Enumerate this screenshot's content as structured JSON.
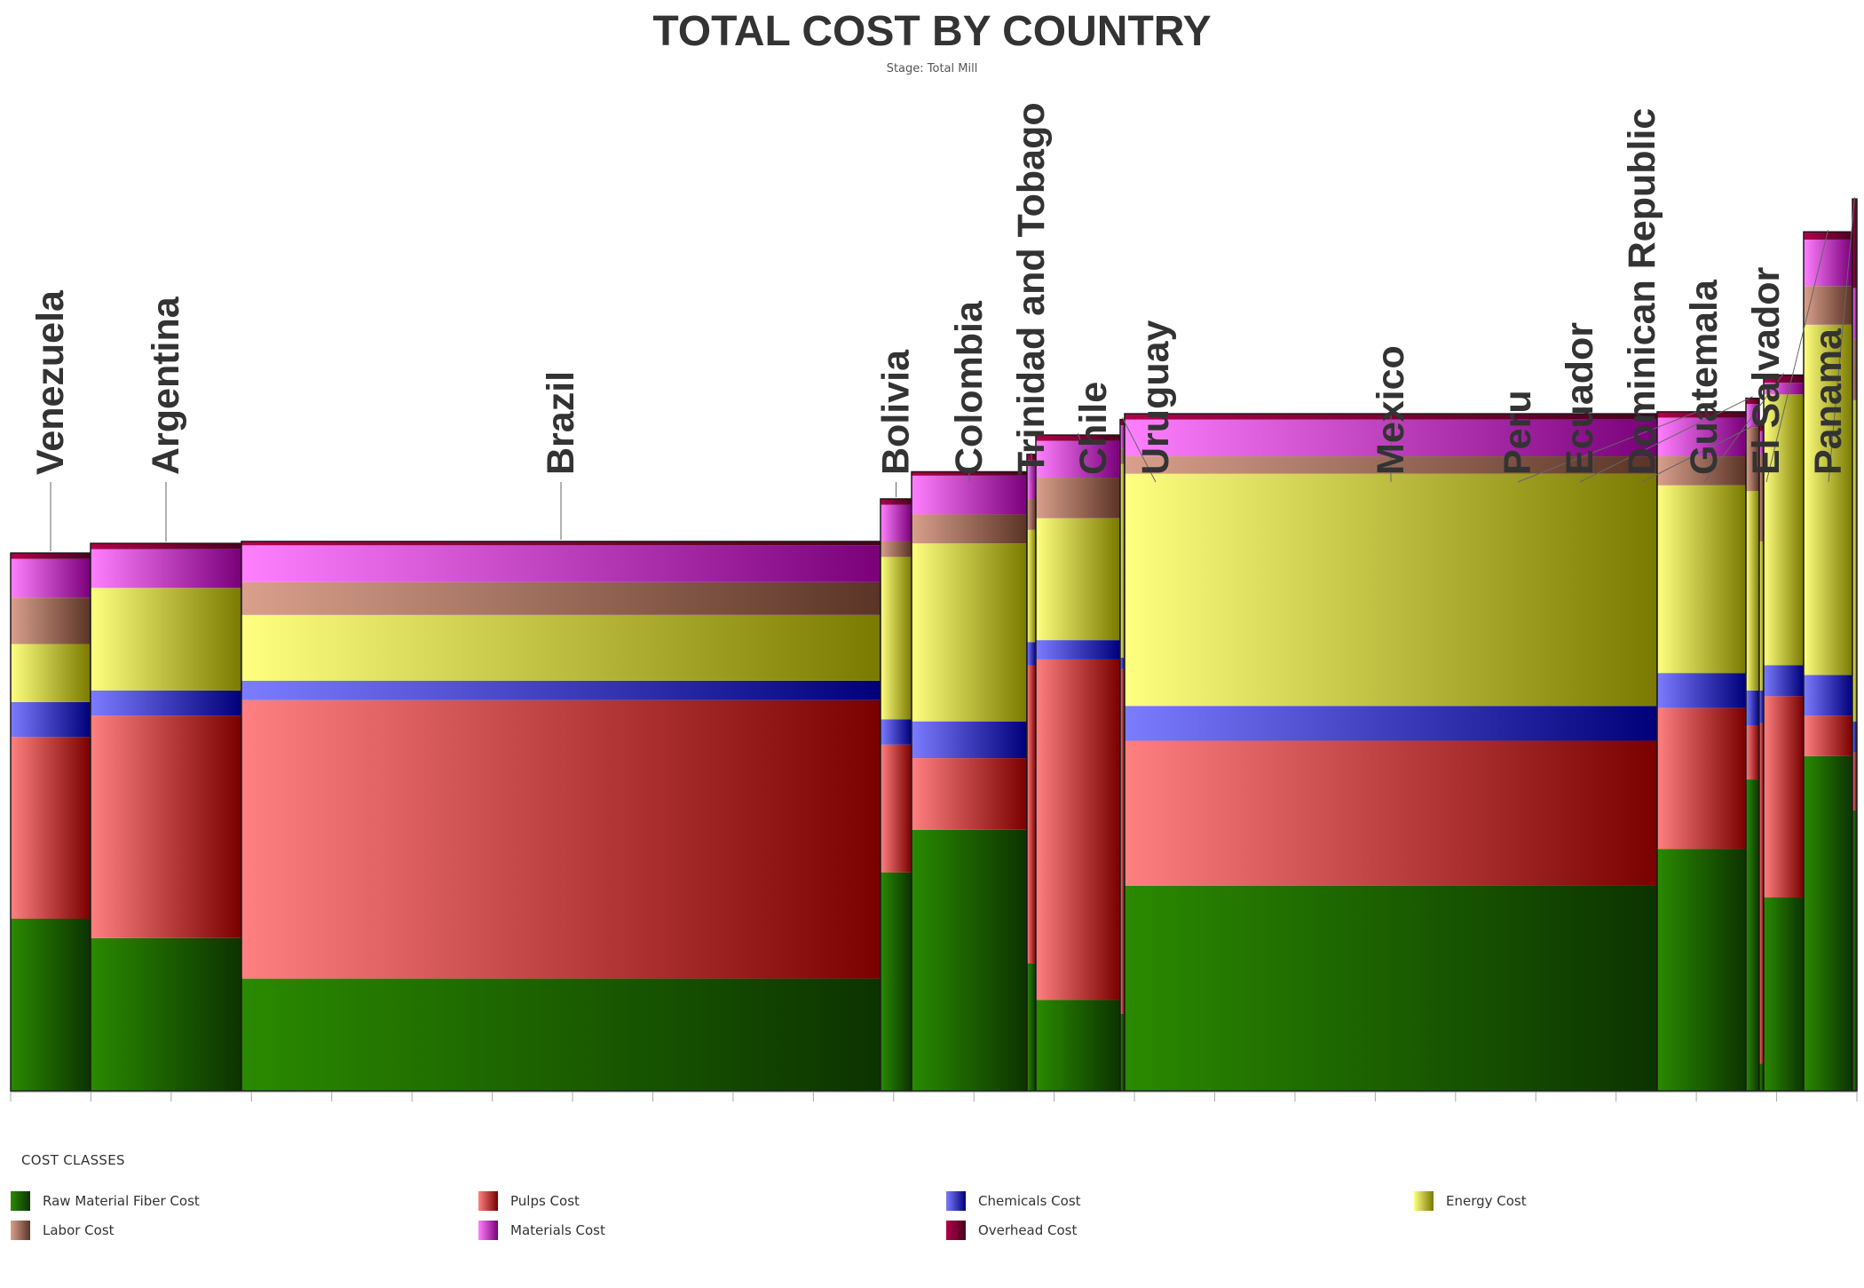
{
  "chart_data": {
    "type": "bar",
    "title": "TOTAL COST BY COUNTRY",
    "subtitle": "Stage: Total Mill",
    "legend_title": "COST CLASSES",
    "legend_position": "bottom",
    "cost_classes": [
      {
        "name": "Raw Material Fiber Cost",
        "color_light": "#2a8a00",
        "color_dark": "#0c3300"
      },
      {
        "name": "Pulps Cost",
        "color_light": "#ff8080",
        "color_dark": "#7a0000"
      },
      {
        "name": "Chemicals Cost",
        "color_light": "#7c7cff",
        "color_dark": "#00007a"
      },
      {
        "name": "Energy Cost",
        "color_light": "#ffff80",
        "color_dark": "#7a7a00"
      },
      {
        "name": "Labor Cost",
        "color_light": "#d9a08c",
        "color_dark": "#5a3426"
      },
      {
        "name": "Materials Cost",
        "color_light": "#ff80ff",
        "color_dark": "#7a007a"
      },
      {
        "name": "Overhead Cost",
        "color_light": "#b0004a",
        "color_dark": "#4a0020"
      }
    ],
    "countries": [
      {
        "name": "Venezuela",
        "width": 9,
        "values": [
          89,
          94,
          18,
          30,
          24,
          20,
          3
        ]
      },
      {
        "name": "Argentina",
        "width": 17,
        "values": [
          79,
          115,
          13,
          53,
          0,
          20,
          3
        ]
      },
      {
        "name": "Brazil",
        "width": 72,
        "values": [
          58,
          144,
          10,
          34,
          17,
          19,
          2
        ]
      },
      {
        "name": "Bolivia",
        "width": 3.5,
        "values": [
          113,
          66,
          13,
          84,
          8,
          19,
          3
        ]
      },
      {
        "name": "Colombia",
        "width": 13,
        "values": [
          135,
          37,
          19,
          92,
          15,
          20,
          2
        ]
      },
      {
        "name": "Trinidad and Tobago",
        "width": 1,
        "values": [
          66,
          154,
          12,
          58,
          16,
          20,
          3
        ]
      },
      {
        "name": "Chile",
        "width": 9.5,
        "values": [
          47,
          176,
          10,
          63,
          21,
          19,
          3
        ]
      },
      {
        "name": "Uruguay",
        "width": 0.5,
        "values": [
          40,
          178,
          6,
          100,
          8,
          12,
          3
        ]
      },
      {
        "name": "Mexico",
        "width": 60,
        "values": [
          106,
          75,
          18,
          120,
          9,
          19,
          3
        ]
      },
      {
        "name": "Peru",
        "width": 10,
        "values": [
          125,
          73,
          18,
          97,
          15,
          20,
          3
        ]
      },
      {
        "name": "Ecuador",
        "width": 1.5,
        "values": [
          161,
          28,
          18,
          103,
          33,
          12,
          3
        ]
      },
      {
        "name": "Dominican Republic",
        "width": 0.5,
        "values": [
          14,
          176,
          17,
          77,
          45,
          12,
          4
        ]
      },
      {
        "name": "Guatemala",
        "width": 4.5,
        "values": [
          100,
          104,
          16,
          140,
          0,
          6,
          4
        ]
      },
      {
        "name": "El Salvador",
        "width": 5.5,
        "values": [
          173,
          21,
          21,
          181,
          20,
          24,
          4
        ]
      },
      {
        "name": "Panama",
        "width": 0.5,
        "values": [
          145,
          30,
          16,
          166,
          32,
          26,
          46
        ]
      }
    ],
    "ylim": [
      0,
      480
    ],
    "xlabel": "",
    "ylabel": "",
    "grid": false
  }
}
